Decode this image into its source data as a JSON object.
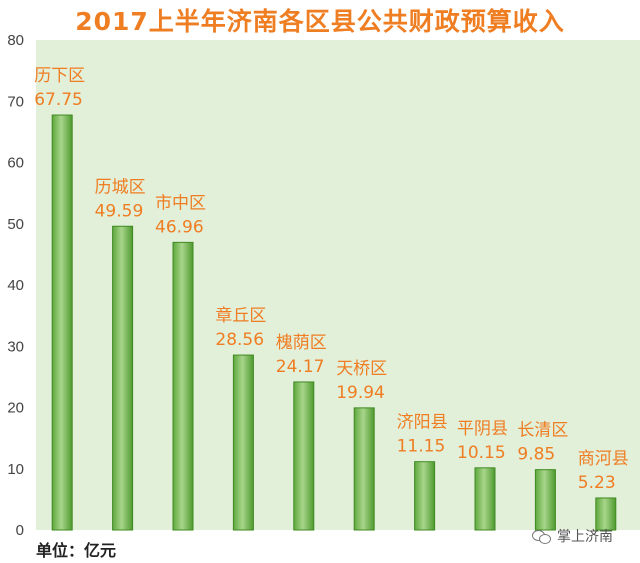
{
  "chart_data": {
    "type": "bar",
    "title": "2017上半年济南各区县公共财政预算收入",
    "categories": [
      "历下区",
      "历城区",
      "市中区",
      "章丘区",
      "槐荫区",
      "天桥区",
      "济阳县",
      "平阴县",
      "长清区",
      "商河县"
    ],
    "values": [
      67.75,
      49.59,
      46.96,
      28.56,
      24.17,
      19.94,
      11.15,
      10.15,
      9.85,
      5.23
    ],
    "value_labels": [
      "67.75",
      "49.59",
      "46.96",
      "28.56",
      "24.17",
      "19.94",
      "11.15",
      "10.15",
      "9.85",
      "5.23"
    ],
    "ylim": [
      0,
      80
    ],
    "yticks": [
      "0",
      "10",
      "20",
      "30",
      "40",
      "50",
      "60",
      "70",
      "80"
    ],
    "unit": "单位：亿元",
    "grid": false,
    "colors": {
      "title": "#ef7d22",
      "labels": "#ef7d22",
      "plot_bg": "#e2efd9",
      "bar_light": "#9fcf7f",
      "bar_dark": "#4f9a2f"
    }
  },
  "watermark": "掌上济南"
}
